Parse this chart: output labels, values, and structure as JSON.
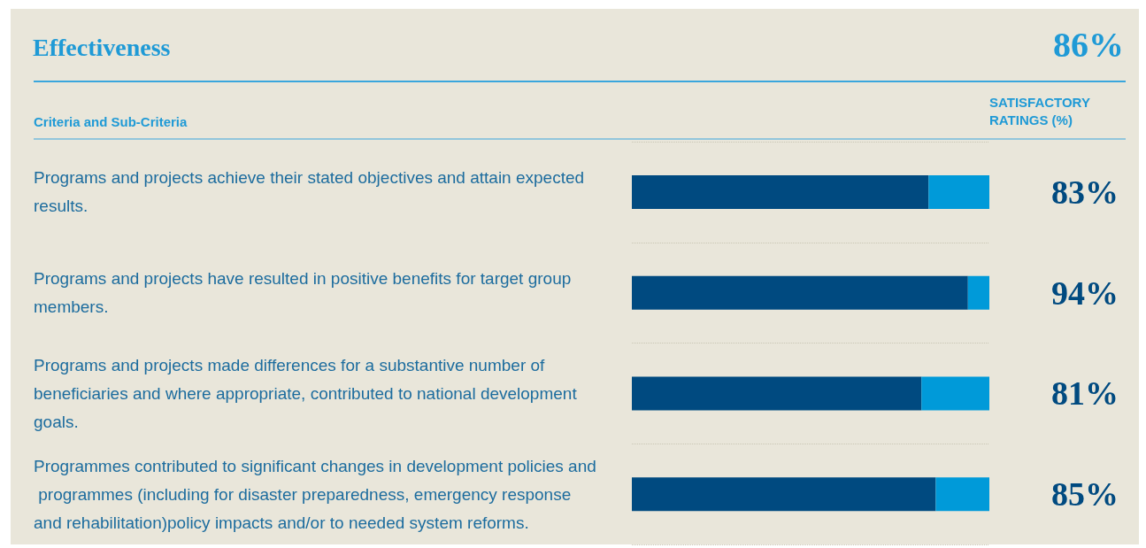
{
  "chart_data": {
    "type": "bar",
    "orientation": "horizontal",
    "stacked": true,
    "title": "Effectiveness",
    "annotations": [
      "86%",
      "Criteria and Sub-Criteria",
      "SATISFACTORY RATINGS (%)"
    ],
    "categories": [
      "Programs and projects achieve their stated objectives and attain expected results.",
      "Programs and projects have resulted in positive benefits for target group members.",
      "Programs and projects made differences for a substantive number of beneficiaries and where appropriate, contributed to national development goals.",
      "Programmes contributed to significant changes in development policies and programmes (including for disaster preparedness, emergency response and rehabilitation)policy impacts and/or to needed system reforms."
    ],
    "series": [
      {
        "color": "#004a80",
        "values": [
          83,
          94,
          81,
          85
        ],
        "value_labels": [
          "83%",
          "94%",
          "81%",
          "85%"
        ]
      },
      {
        "color": "#009ad9",
        "values": [
          17,
          6,
          19,
          15
        ]
      }
    ],
    "xlim": [
      0,
      100
    ],
    "tick_labels": "y",
    "grid": "y"
  }
}
